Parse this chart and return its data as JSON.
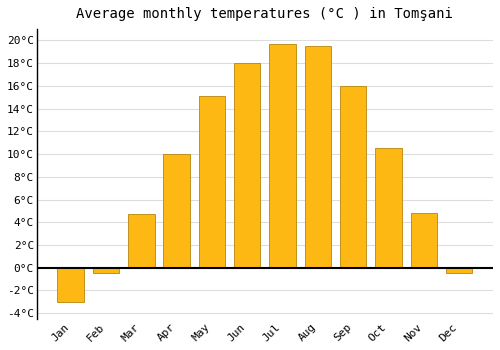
{
  "title": "Average monthly temperatures (°C ) in Tomşani",
  "months": [
    "Jan",
    "Feb",
    "Mar",
    "Apr",
    "May",
    "Jun",
    "Jul",
    "Aug",
    "Sep",
    "Oct",
    "Nov",
    "Dec"
  ],
  "values": [
    -3.0,
    -0.5,
    4.7,
    10.0,
    15.1,
    18.0,
    19.7,
    19.5,
    16.0,
    10.5,
    4.8,
    -0.5
  ],
  "bar_color_fill": "#FDB813",
  "bar_color_edge": "#B8860B",
  "bar_width": 0.75,
  "ylim": [
    -4.5,
    21.0
  ],
  "yticks": [
    -4,
    -2,
    0,
    2,
    4,
    6,
    8,
    10,
    12,
    14,
    16,
    18,
    20
  ],
  "ytick_labels": [
    "-4°C",
    "-2°C",
    "0°C",
    "2°C",
    "4°C",
    "6°C",
    "8°C",
    "10°C",
    "12°C",
    "14°C",
    "16°C",
    "18°C",
    "20°C"
  ],
  "background_color": "#ffffff",
  "plot_bg_color": "#ffffff",
  "grid_color": "#dddddd",
  "title_fontsize": 10,
  "tick_fontsize": 8,
  "zero_line_color": "#000000",
  "spine_color": "#000000"
}
